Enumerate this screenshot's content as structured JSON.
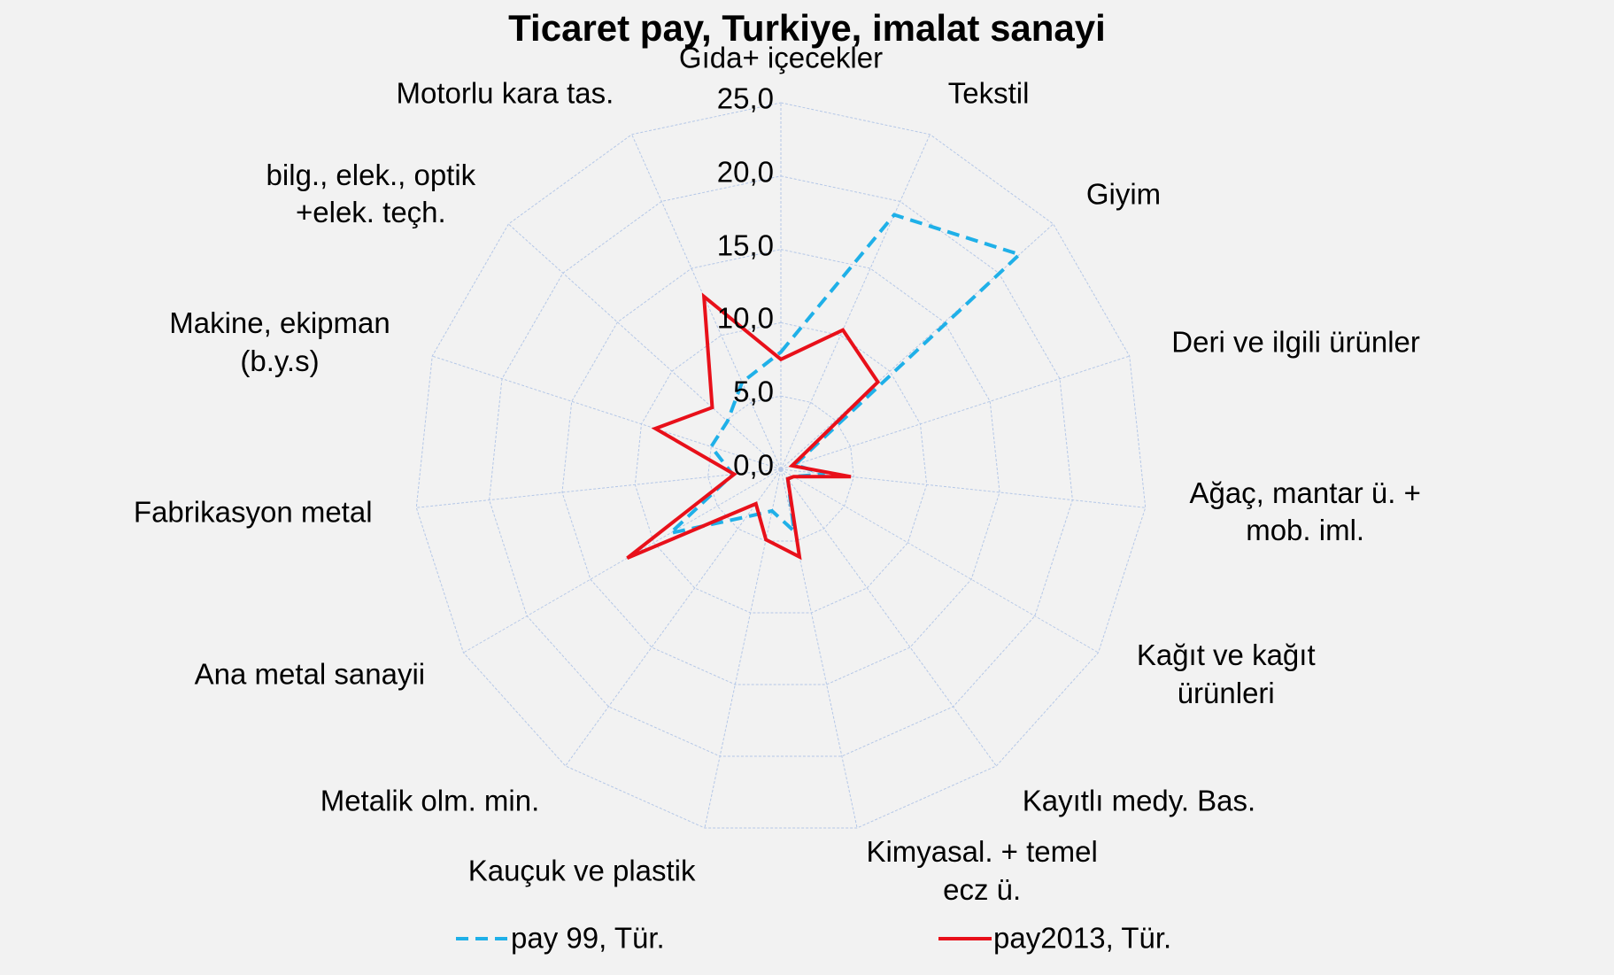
{
  "chart_data": {
    "type": "radar",
    "title": "Ticaret pay, Turkiye, imalat sanayi",
    "categories": [
      "Gıda+ içecekler",
      "Tekstil",
      "Giyim",
      "Deri ve ilgili ürünler",
      "Ağaç, mantar ü. +\nmob. iml.",
      "Kağıt ve kağıt\nürünleri",
      "Kayıtlı medy. Bas.",
      "Kimyasal. + temel\necz ü.",
      "Kauçuk ve plastik",
      "Metalik olm. min.",
      "Ana metal sanayii",
      "Fabrikasyon metal",
      "Makine, ekipman\n(b.y.s)",
      "bilg., elek., optik\n+elek. teçh.",
      "Motorlu kara tas."
    ],
    "series": [
      {
        "name": "pay 99, Tür.",
        "color": "#1fb0e8",
        "dash": true,
        "values": [
          8.0,
          19.0,
          21.9,
          1.0,
          3.0,
          1.0,
          0.8,
          4.3,
          2.9,
          4.0,
          8.7,
          3.3,
          5.0,
          4.9,
          6.5
        ]
      },
      {
        "name": "pay2013, Tür.",
        "color": "#e8101a",
        "dash": false,
        "values": [
          7.5,
          10.4,
          8.9,
          0.8,
          4.8,
          1.0,
          0.8,
          6.1,
          4.9,
          2.9,
          12.1,
          3.2,
          9.0,
          6.3,
          12.9
        ]
      }
    ],
    "ylim": [
      0,
      25
    ],
    "yticks": [
      {
        "value": 0,
        "label": "0,0"
      },
      {
        "value": 5,
        "label": "5,0"
      },
      {
        "value": 10,
        "label": "10,0"
      },
      {
        "value": 15,
        "label": "15,0"
      },
      {
        "value": 20,
        "label": "20,0"
      },
      {
        "value": 25,
        "label": "25,0"
      }
    ],
    "grid": true,
    "legend": "bottom"
  }
}
